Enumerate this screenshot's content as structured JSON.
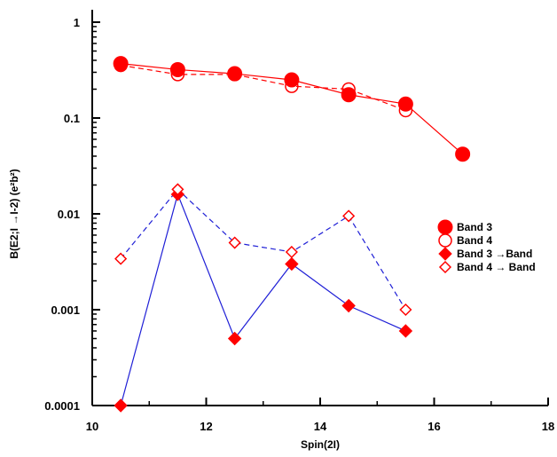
{
  "chart_data": {
    "type": "scatter",
    "title": "",
    "xlabel": "Spin(2I)",
    "ylabel": "B(E2;I →I-2) (e²b²)",
    "xlim": [
      10,
      18
    ],
    "ylim": [
      0.0001,
      1
    ],
    "yscale": "log",
    "x_ticks": [
      {
        "value": 10,
        "label": "10"
      },
      {
        "value": 12,
        "label": "12"
      },
      {
        "value": 14,
        "label": "14"
      },
      {
        "value": 16,
        "label": "16"
      },
      {
        "value": 18,
        "label": "18"
      }
    ],
    "y_ticks": [
      {
        "value": 0.0001,
        "label": "0.0001"
      },
      {
        "value": 0.001,
        "label": "0.001"
      },
      {
        "value": 0.01,
        "label": "0.01"
      },
      {
        "value": 0.1,
        "label": "0.1"
      },
      {
        "value": 1,
        "label": "1"
      }
    ],
    "grid": false,
    "legend_position": "right",
    "series": [
      {
        "name": "Band 3",
        "marker": "filled-circle",
        "line": "solid",
        "color": "#ff0000",
        "x": [
          10.5,
          11.5,
          12.5,
          13.5,
          14.5,
          15.5,
          16.5
        ],
        "y": [
          0.37,
          0.32,
          0.29,
          0.25,
          0.175,
          0.14,
          0.042
        ]
      },
      {
        "name": "Band 4",
        "marker": "open-circle",
        "line": "dashed",
        "color": "#ff0000",
        "x": [
          10.5,
          11.5,
          12.5,
          13.5,
          14.5,
          15.5
        ],
        "y": [
          0.355,
          0.285,
          0.285,
          0.215,
          0.2,
          0.12
        ]
      },
      {
        "name": "Band 3 →Band",
        "marker": "filled-diamond",
        "line": "solid",
        "color": "#ff0000",
        "line_color": "#1f1fd6",
        "x": [
          10.5,
          11.5,
          12.5,
          13.5,
          14.5,
          15.5
        ],
        "y": [
          0.0001,
          0.016,
          0.0005,
          0.003,
          0.0011,
          0.0006
        ]
      },
      {
        "name": "Band 4 → Band",
        "marker": "open-diamond",
        "line": "dashed",
        "color": "#ff0000",
        "line_color": "#1f1fd6",
        "x": [
          10.5,
          11.5,
          12.5,
          13.5,
          14.5,
          15.5
        ],
        "y": [
          0.0034,
          0.018,
          0.005,
          0.004,
          0.0095,
          0.001
        ]
      }
    ]
  }
}
